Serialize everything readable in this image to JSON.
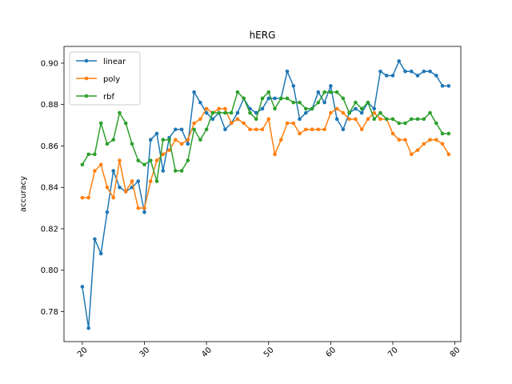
{
  "chart_data": {
    "type": "line",
    "title": "hERG",
    "xlabel": "",
    "ylabel": "accuracy",
    "xlim": [
      17.05,
      80.95
    ],
    "ylim": [
      0.7655,
      0.9081
    ],
    "xticks": [
      20,
      30,
      40,
      50,
      60,
      70,
      80
    ],
    "yticks": [
      0.78,
      0.8,
      0.82,
      0.84,
      0.86,
      0.88,
      0.9
    ],
    "ytick_labels": [
      "0.78",
      "0.80",
      "0.82",
      "0.84",
      "0.86",
      "0.88",
      "0.90"
    ],
    "grid": false,
    "legend_position": "upper-left",
    "x": [
      20,
      21,
      22,
      23,
      24,
      25,
      26,
      27,
      28,
      29,
      30,
      31,
      32,
      33,
      34,
      35,
      36,
      37,
      38,
      39,
      40,
      41,
      42,
      43,
      44,
      45,
      46,
      47,
      48,
      49,
      50,
      51,
      52,
      53,
      54,
      55,
      56,
      57,
      58,
      59,
      60,
      61,
      62,
      63,
      64,
      65,
      66,
      67,
      68,
      69,
      70,
      71,
      72,
      73,
      74,
      75,
      76,
      77,
      78,
      79
    ],
    "series": [
      {
        "name": "linear",
        "color": "#1f77b4",
        "values": [
          0.792,
          0.772,
          0.815,
          0.808,
          0.828,
          0.848,
          0.84,
          0.838,
          0.84,
          0.843,
          0.828,
          0.863,
          0.866,
          0.848,
          0.864,
          0.868,
          0.868,
          0.861,
          0.886,
          0.881,
          0.876,
          0.873,
          0.876,
          0.868,
          0.871,
          0.876,
          0.883,
          0.878,
          0.876,
          0.878,
          0.883,
          0.883,
          0.883,
          0.896,
          0.889,
          0.873,
          0.876,
          0.878,
          0.886,
          0.881,
          0.889,
          0.873,
          0.868,
          0.876,
          0.878,
          0.876,
          0.881,
          0.878,
          0.896,
          0.894,
          0.894,
          0.901,
          0.896,
          0.896,
          0.894,
          0.896,
          0.896,
          0.894,
          0.889,
          0.889
        ]
      },
      {
        "name": "poly",
        "color": "#ff7f0e",
        "values": [
          0.835,
          0.835,
          0.848,
          0.851,
          0.84,
          0.835,
          0.853,
          0.838,
          0.843,
          0.83,
          0.83,
          0.843,
          0.853,
          0.856,
          0.858,
          0.863,
          0.861,
          0.863,
          0.871,
          0.873,
          0.878,
          0.876,
          0.878,
          0.878,
          0.871,
          0.873,
          0.871,
          0.868,
          0.868,
          0.868,
          0.873,
          0.856,
          0.863,
          0.871,
          0.871,
          0.866,
          0.868,
          0.868,
          0.868,
          0.868,
          0.876,
          0.878,
          0.876,
          0.873,
          0.873,
          0.868,
          0.873,
          0.876,
          0.873,
          0.873,
          0.866,
          0.863,
          0.863,
          0.856,
          0.858,
          0.861,
          0.863,
          0.863,
          0.861,
          0.856
        ]
      },
      {
        "name": "rbf",
        "color": "#2ca02c",
        "values": [
          0.851,
          0.856,
          0.856,
          0.871,
          0.861,
          0.863,
          0.876,
          0.871,
          0.861,
          0.853,
          0.851,
          0.853,
          0.843,
          0.863,
          0.863,
          0.848,
          0.848,
          0.853,
          0.868,
          0.863,
          0.868,
          0.876,
          0.876,
          0.876,
          0.876,
          0.886,
          0.883,
          0.876,
          0.873,
          0.883,
          0.886,
          0.878,
          0.883,
          0.883,
          0.881,
          0.881,
          0.878,
          0.878,
          0.881,
          0.886,
          0.886,
          0.886,
          0.883,
          0.876,
          0.881,
          0.878,
          0.881,
          0.873,
          0.876,
          0.873,
          0.873,
          0.871,
          0.871,
          0.873,
          0.873,
          0.873,
          0.876,
          0.871,
          0.866,
          0.866
        ]
      }
    ]
  }
}
